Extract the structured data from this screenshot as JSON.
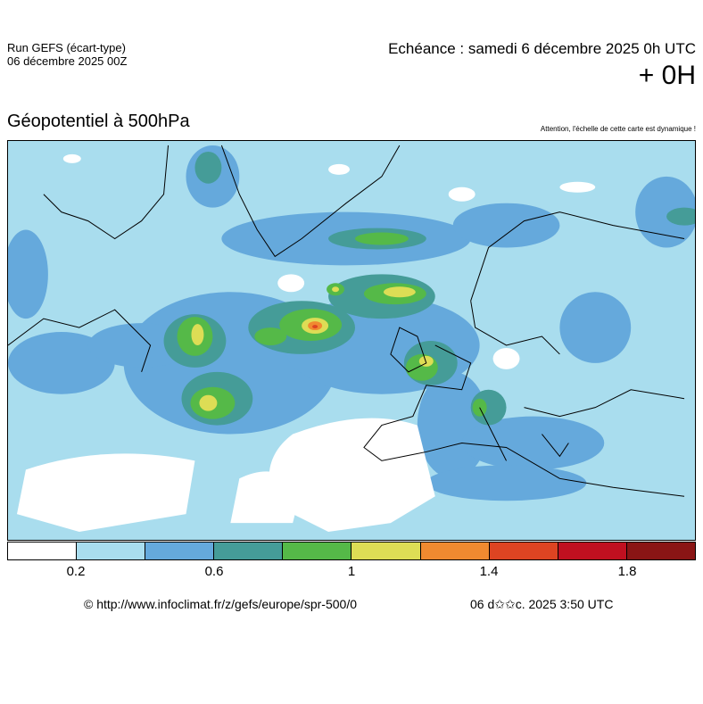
{
  "header": {
    "run_line1": "Run GEFS (écart-type)",
    "run_line2": "06 décembre 2025 00Z",
    "echeance": "Echéance : samedi 6 décembre 2025 0h UTC",
    "lead": "+ 0H"
  },
  "map": {
    "title": "Géopotentiel à 500hPa",
    "warning": "Attention, l'échelle de cette carte est dynamique !"
  },
  "colorbar": {
    "colors": [
      "#ffffff",
      "#a9ddee",
      "#65a9dc",
      "#459c98",
      "#55b948",
      "#dddd55",
      "#f08a30",
      "#dd4422",
      "#c01020",
      "#8a1515"
    ],
    "ticks": [
      "0.2",
      "0.6",
      "1",
      "1.4",
      "1.8"
    ]
  },
  "footer": {
    "copyright": "© http://www.infoclimat.fr/z/gefs/europe/spr-500/0",
    "timestamp": "06 d✩✩c. 2025  3:50 UTC"
  }
}
